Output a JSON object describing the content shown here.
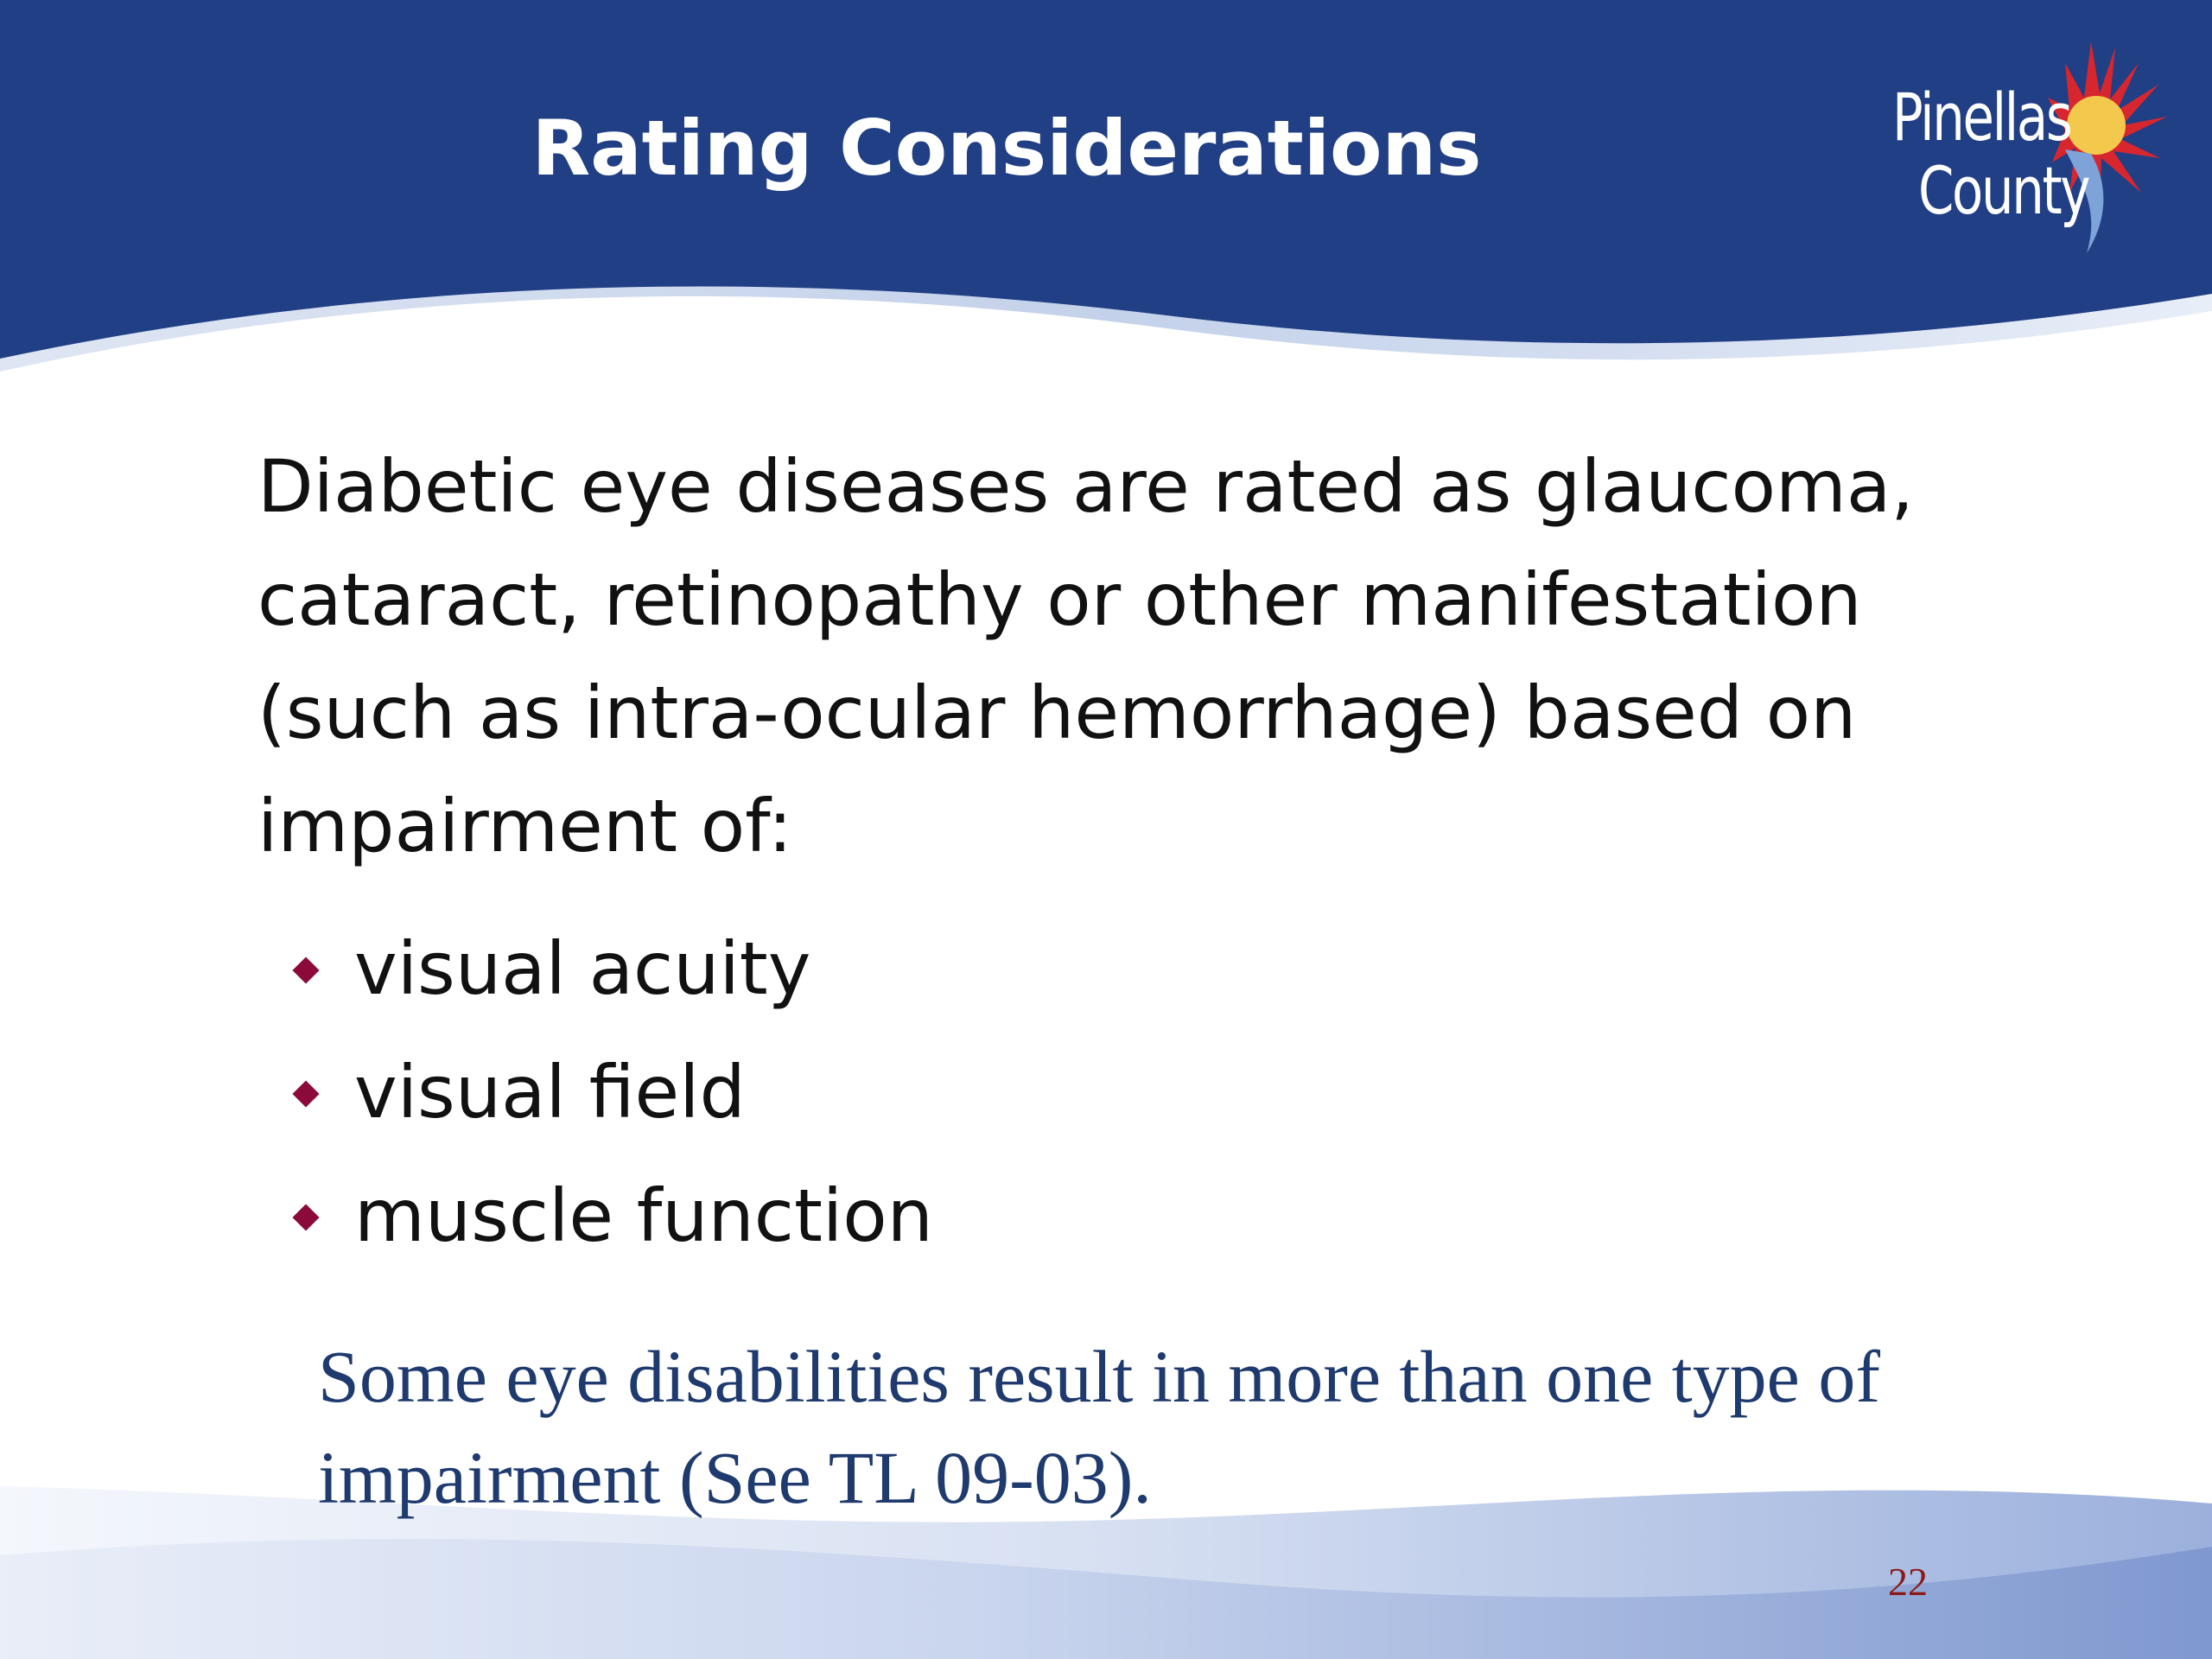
{
  "slide": {
    "title": "Rating Considerations",
    "logo": {
      "line1": "Pinellas",
      "line2": "County",
      "name": "pinellas-county-logo"
    },
    "body": "Diabetic eye diseases are rated as glaucoma, cataract, retinopathy or other manifestation (such as intra-ocular hemorrhage) based on impairment of:",
    "bullets": [
      "visual acuity",
      "visual field",
      "muscle function"
    ],
    "note": "Some eye disabilities result in more than one type of impairment (See TL 09-03).",
    "page_number": "22"
  },
  "colors": {
    "header_blue": "#213f85",
    "bullet": "#8b0a3a",
    "note_text": "#1e3a6e",
    "page_number": "#8b1a1a"
  },
  "icons": {
    "bullet": "diamond-bullet-icon"
  }
}
